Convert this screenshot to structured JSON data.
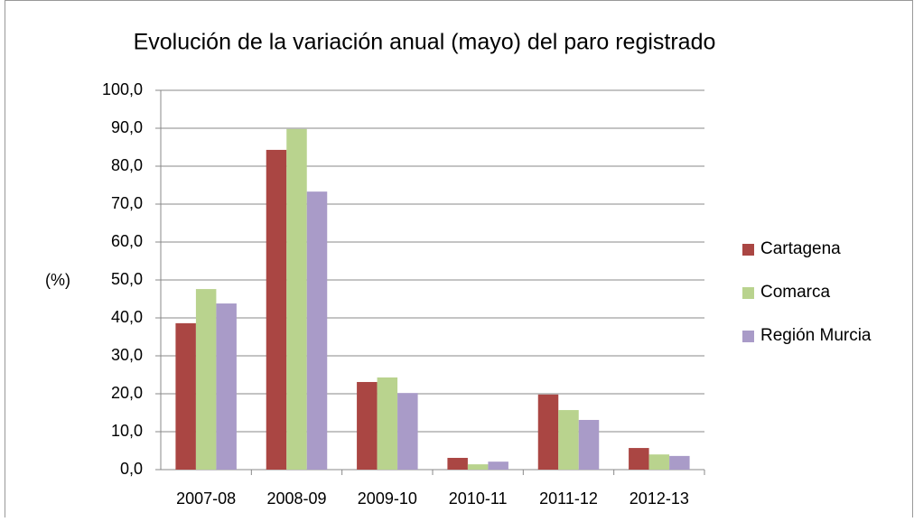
{
  "chart_data": {
    "type": "bar",
    "title": "Evolución de la variación anual (mayo) del paro registrado",
    "y_label": "(%)",
    "categories": [
      "2007-08",
      "2008-09",
      "2009-10",
      "2010-11",
      "2011-12",
      "2012-13"
    ],
    "series": [
      {
        "name": "Cartagena",
        "color": "#aa4643",
        "values": [
          38.6,
          84.3,
          23.1,
          3.1,
          19.8,
          5.7
        ]
      },
      {
        "name": "Comarca",
        "color": "#b9d38e",
        "values": [
          47.6,
          89.8,
          24.3,
          1.4,
          15.7,
          4.0
        ]
      },
      {
        "name": "Región Murcia",
        "color": "#a99bc8",
        "values": [
          43.8,
          73.3,
          20.2,
          2.1,
          13.1,
          3.6
        ]
      }
    ],
    "ylim": [
      0,
      100
    ],
    "yticks": [
      {
        "value": 0,
        "label": "0,0"
      },
      {
        "value": 10,
        "label": "10,0"
      },
      {
        "value": 20,
        "label": "20,0"
      },
      {
        "value": 30,
        "label": "30,0"
      },
      {
        "value": 40,
        "label": "40,0"
      },
      {
        "value": 50,
        "label": "50,0"
      },
      {
        "value": 60,
        "label": "60,0"
      },
      {
        "value": 70,
        "label": "70,0"
      },
      {
        "value": 80,
        "label": "80,0"
      },
      {
        "value": 90,
        "label": "90,0"
      },
      {
        "value": 100,
        "label": "100,0"
      }
    ],
    "grid": true,
    "legend": "right"
  }
}
